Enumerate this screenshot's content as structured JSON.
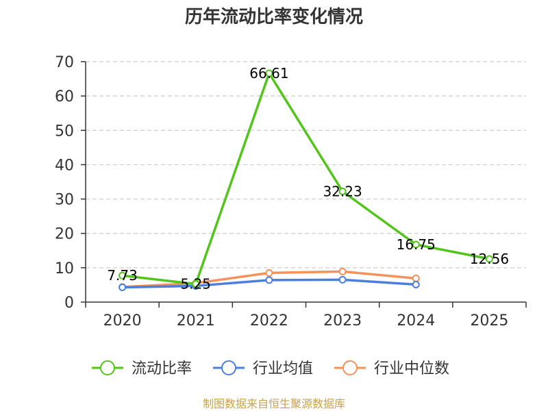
{
  "title": "历年流动比率变化情况",
  "footer": "制图数据来自恒生聚源数据库",
  "colors": {
    "footer": "#c8a14a",
    "axis": "#333333",
    "grid": "#cccccc"
  },
  "chart_data": {
    "type": "line",
    "categories": [
      "2020",
      "2021",
      "2022",
      "2023",
      "2024",
      "2025"
    ],
    "ylim": [
      0,
      70
    ],
    "yticks": [
      0,
      10,
      20,
      30,
      40,
      50,
      60,
      70
    ],
    "grid": "horizontal dashed",
    "legend_position": "bottom",
    "series": [
      {
        "name": "流动比率",
        "color": "#52c41a",
        "values": [
          7.73,
          5.25,
          66.61,
          32.23,
          16.75,
          12.56
        ],
        "labels": [
          "7.73",
          "5.25",
          "66.61",
          "32.23",
          "16.75",
          "12.56"
        ]
      },
      {
        "name": "行业均值",
        "color": "#4a7fe0",
        "values": [
          4.3,
          4.7,
          6.4,
          6.5,
          5.1,
          null
        ],
        "labels": []
      },
      {
        "name": "行业中位数",
        "color": "#f5915a",
        "values": [
          4.4,
          5.5,
          8.5,
          8.9,
          6.9,
          null
        ],
        "labels": []
      }
    ]
  }
}
